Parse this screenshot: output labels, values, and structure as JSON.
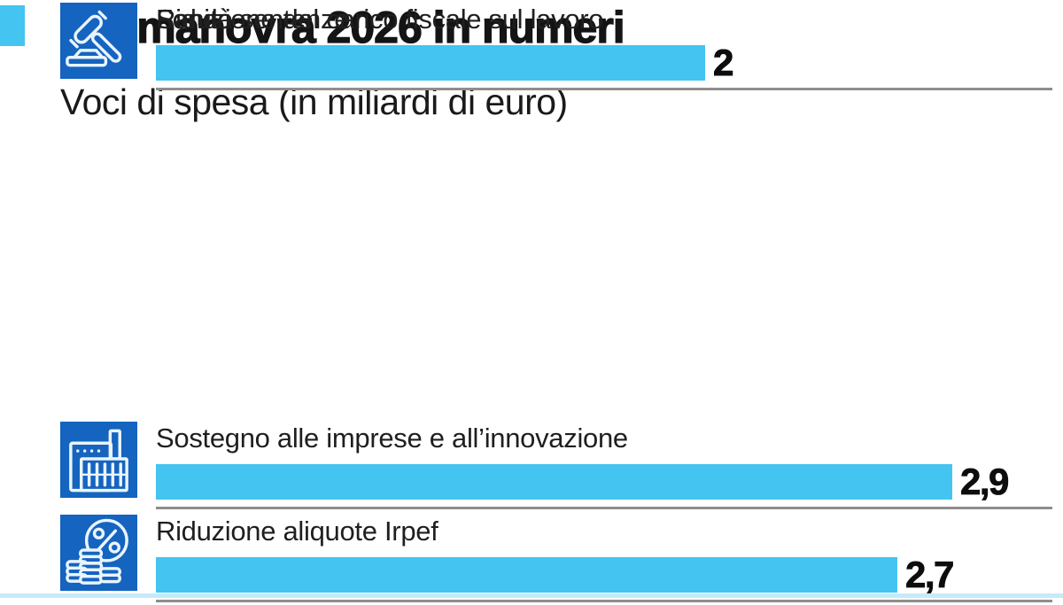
{
  "header": {
    "title": "La manovra 2026 in numeri",
    "subtitle": "Voci di spesa (in miliardi di euro)"
  },
  "colors": {
    "bar": "#44c4f1",
    "accent_square": "#44c4f1",
    "icon_background": "#1564c0",
    "icon_stroke": "#e9f4fc",
    "separator": "#8e8e8e",
    "text": "#151515",
    "bottom_strip": "#c5eafa"
  },
  "chart_data": {
    "type": "bar",
    "orientation": "horizontal",
    "title": "La manovra 2026 in numeri",
    "subtitle": "Voci di spesa (in miliardi di euro)",
    "unit": "miliardi di euro",
    "axis_max": 2.9,
    "grid": false,
    "legend": false,
    "categories": [
      "Sostegno alle imprese e all’innovazione",
      "Riduzione aliquote Irpef",
      "Riduzione del carico fiscale sul lavoro",
      "Sanità",
      "Fondo sentenze"
    ],
    "values": [
      2.9,
      2.7,
      2,
      2,
      2
    ],
    "value_labels": [
      "2,9",
      "2,7",
      "2",
      "2",
      "2"
    ],
    "icon_names": [
      "factory-icon",
      "coins-percent-icon",
      "gears-icon",
      "medical-cross-icon",
      "gavel-icon"
    ]
  },
  "rows": [
    {
      "label": "Sostegno alle imprese e all’innovazione",
      "value": 2.9,
      "value_label": "2,9",
      "icon": "factory-icon"
    },
    {
      "label": "Riduzione aliquote Irpef",
      "value": 2.7,
      "value_label": "2,7",
      "icon": "coins-percent-icon"
    },
    {
      "label": "Riduzione del carico fiscale sul lavoro",
      "value": 2,
      "value_label": "2",
      "icon": "gears-icon"
    },
    {
      "label": "Sanità",
      "value": 2,
      "value_label": "2",
      "icon": "medical-cross-icon"
    },
    {
      "label": "Fondo sentenze",
      "value": 2,
      "value_label": "2",
      "icon": "gavel-icon"
    }
  ]
}
